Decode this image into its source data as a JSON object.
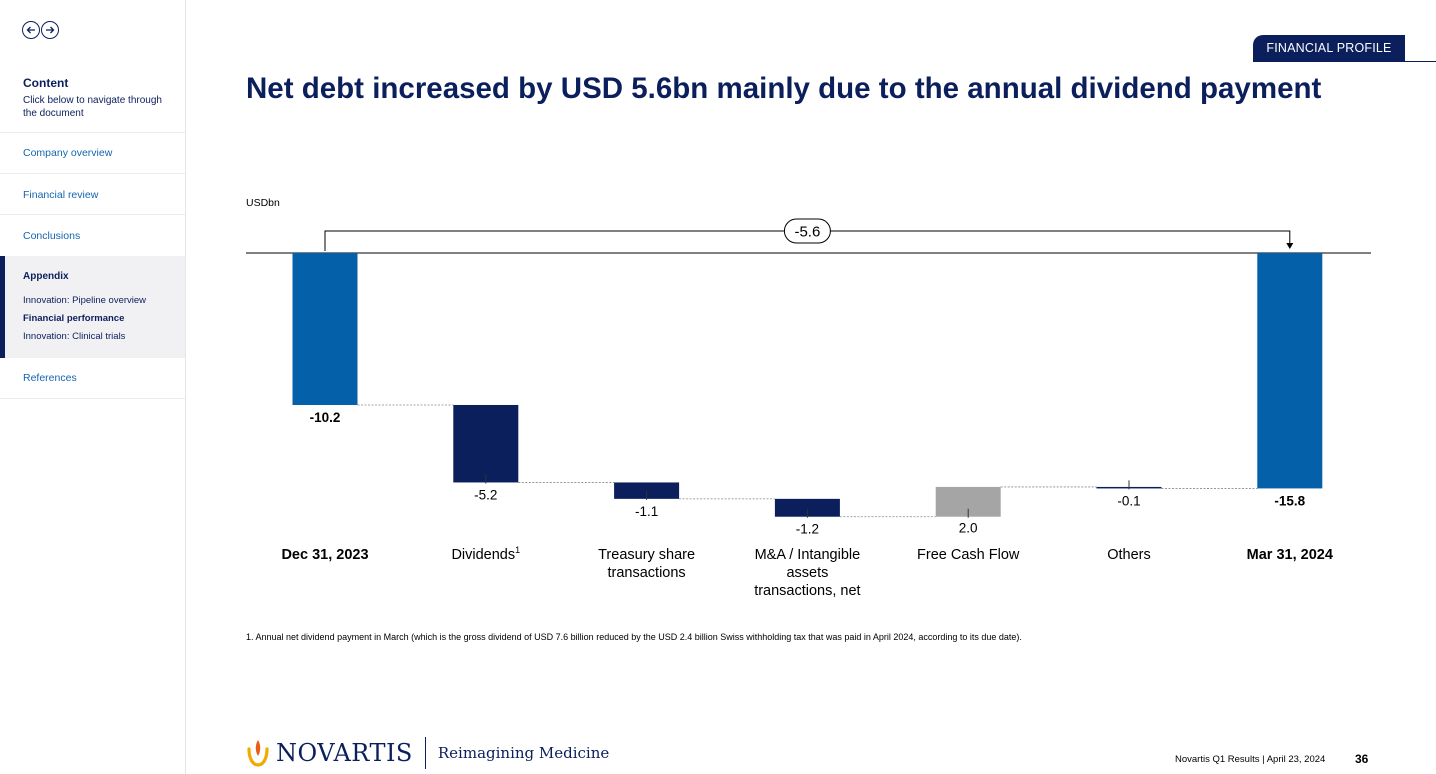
{
  "sidebar": {
    "content_title": "Content",
    "content_sub": "Click below to navigate through the document",
    "items": [
      {
        "label": "Company overview"
      },
      {
        "label": "Financial review"
      },
      {
        "label": "Conclusions"
      }
    ],
    "appendix": {
      "title": "Appendix",
      "subitems": [
        "Innovation: Pipeline overview",
        "Financial performance",
        "Innovation: Clinical trials"
      ]
    },
    "references": "References"
  },
  "header": {
    "tab_label": "FINANCIAL PROFILE",
    "title": "Net debt increased by USD 5.6bn mainly due to the annual dividend payment"
  },
  "chart_data": {
    "type": "waterfall",
    "unit_label": "USDbn",
    "change_label": "-5.6",
    "categories": [
      {
        "label_lines": [
          "Dec 31, 2023"
        ],
        "bold": true,
        "value": -10.2,
        "label": "-10.2",
        "kind": "total"
      },
      {
        "label_lines": [
          "Dividends"
        ],
        "sup": "1",
        "bold": false,
        "value": -5.2,
        "label": "-5.2",
        "kind": "decrease"
      },
      {
        "label_lines": [
          "Treasury share",
          "transactions"
        ],
        "bold": false,
        "value": -1.1,
        "label": "-1.1",
        "kind": "decrease"
      },
      {
        "label_lines": [
          "M&A / Intangible",
          "assets",
          "transactions, net"
        ],
        "bold": false,
        "value": -1.2,
        "label": "-1.2",
        "kind": "decrease"
      },
      {
        "label_lines": [
          "Free Cash Flow"
        ],
        "bold": false,
        "value": 2.0,
        "label": "2.0",
        "kind": "increase"
      },
      {
        "label_lines": [
          "Others"
        ],
        "bold": false,
        "value": -0.1,
        "label": "-0.1",
        "kind": "decrease"
      },
      {
        "label_lines": [
          "Mar 31, 2024"
        ],
        "bold": true,
        "value": -15.8,
        "label": "-15.8",
        "kind": "total"
      }
    ],
    "colors": {
      "total": "#0460a9",
      "decrease": "#0b1f5c",
      "increase": "#a5a5a5"
    }
  },
  "footnote": "1. Annual net dividend payment in March (which is the gross dividend of USD 7.6 billion reduced by the USD 2.4 billion Swiss withholding tax that was paid in April 2024, according to its due date).",
  "footer": {
    "brand": "NOVARTIS",
    "tagline": "Reimagining Medicine",
    "info": "Novartis Q1 Results | April 23, 2024",
    "page": "36"
  }
}
